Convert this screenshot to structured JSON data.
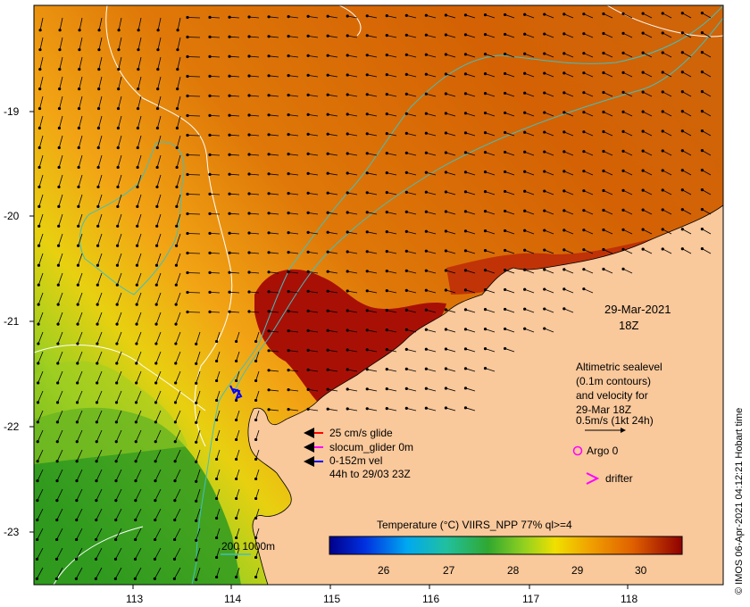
{
  "map": {
    "date_label": "29-Mar-2021",
    "time_label": "18Z",
    "y_ticks": [
      "-19",
      "-20",
      "-21",
      "-22",
      "-23"
    ],
    "x_ticks": [
      "113",
      "114",
      "115",
      "116",
      "117",
      "118"
    ]
  },
  "legend_glider": {
    "line1": "25 cm/s glide",
    "line2": "slocum_glider 0m",
    "line3": "0-152m vel",
    "line4": "44h to 29/03 23Z",
    "red_color": "#ff0000",
    "magenta_color": "#ff00ff",
    "blue_color": "#0000ff"
  },
  "legend_altimetry": {
    "line1": "Altimetric sealevel",
    "line2": "(0.1m contours)",
    "line3": "and velocity for",
    "line4": "29-Mar 18Z",
    "line5": "0.5m/s (1kt 24h)"
  },
  "legend_markers": {
    "argo_label": "Argo 0",
    "drifter_label": "drifter"
  },
  "isobath": {
    "label": "200  1000m",
    "color": "#40c0c0"
  },
  "colorbar": {
    "title": "Temperature (°C) VIIRS_NPP 77% ql>=4",
    "ticks": [
      "26",
      "27",
      "28",
      "29",
      "30"
    ]
  },
  "credit": "© IMOS 06-Apr-2021 04:12:21 Hobart time",
  "palette": {
    "land": "#f9c89b",
    "sst_cold": "#4ca020",
    "sst_warm": "#d86a0a",
    "sst_hot": "#a01008"
  }
}
